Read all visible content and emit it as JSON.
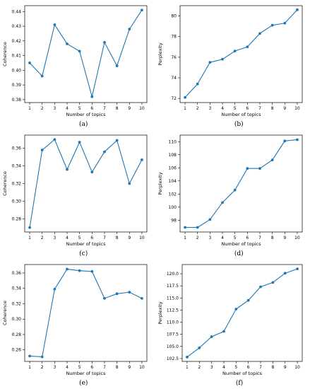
{
  "chart_data": [
    {
      "type": "line",
      "caption": "(a)",
      "xlabel": "Number of topics",
      "ylabel": "Coherence",
      "x": [
        1,
        2,
        3,
        4,
        5,
        6,
        7,
        8,
        9,
        10
      ],
      "y": [
        0.405,
        0.396,
        0.431,
        0.418,
        0.413,
        0.382,
        0.419,
        0.403,
        0.428,
        0.441
      ],
      "xlim": [
        0.6,
        10.4
      ],
      "ylim": [
        0.378,
        0.444
      ],
      "yticks": [
        0.38,
        0.39,
        0.4,
        0.41,
        0.42,
        0.43,
        0.44
      ],
      "yticklabels": [
        "0.38",
        "0.39",
        "0.40",
        "0.41",
        "0.42",
        "0.43",
        "0.44"
      ],
      "color": "#1f77b4",
      "grid": false
    },
    {
      "type": "line",
      "caption": "(b)",
      "xlabel": "Number of topics",
      "ylabel": "Perplexity",
      "x": [
        1,
        2,
        3,
        4,
        5,
        6,
        7,
        8,
        9,
        10
      ],
      "y": [
        72.1,
        73.4,
        75.5,
        75.8,
        76.6,
        77.0,
        78.3,
        79.1,
        79.3,
        80.6
      ],
      "xlim": [
        0.6,
        10.4
      ],
      "ylim": [
        71.6,
        81.0
      ],
      "yticks": [
        72,
        74,
        76,
        78,
        80
      ],
      "yticklabels": [
        "72",
        "74",
        "76",
        "78",
        "80"
      ],
      "color": "#1f77b4",
      "grid": false
    },
    {
      "type": "line",
      "caption": "(c)",
      "xlabel": "Number of topics",
      "ylabel": "Coherence",
      "x": [
        1,
        2,
        3,
        4,
        5,
        6,
        7,
        8,
        9,
        10
      ],
      "y": [
        0.27,
        0.358,
        0.37,
        0.336,
        0.367,
        0.333,
        0.356,
        0.369,
        0.32,
        0.347
      ],
      "xlim": [
        0.6,
        10.4
      ],
      "ylim": [
        0.265,
        0.375
      ],
      "yticks": [
        0.28,
        0.3,
        0.32,
        0.34,
        0.36
      ],
      "yticklabels": [
        "0.28",
        "0.30",
        "0.32",
        "0.34",
        "0.36"
      ],
      "color": "#1f77b4",
      "grid": false
    },
    {
      "type": "line",
      "caption": "(d)",
      "xlabel": "Number of topics",
      "ylabel": "Perplexity",
      "x": [
        1,
        2,
        3,
        4,
        5,
        6,
        7,
        8,
        9,
        10
      ],
      "y": [
        96.9,
        96.9,
        98.1,
        100.7,
        102.6,
        105.9,
        105.9,
        107.2,
        110.1,
        110.3
      ],
      "xlim": [
        0.6,
        10.4
      ],
      "ylim": [
        96.2,
        111.0
      ],
      "yticks": [
        98,
        100,
        102,
        104,
        106,
        108,
        110
      ],
      "yticklabels": [
        "98",
        "100",
        "102",
        "104",
        "106",
        "108",
        "110"
      ],
      "color": "#1f77b4",
      "grid": false
    },
    {
      "type": "line",
      "caption": "(e)",
      "xlabel": "Number of topics",
      "ylabel": "Coherence",
      "x": [
        1,
        2,
        3,
        4,
        5,
        6,
        7,
        8,
        9,
        10
      ],
      "y": [
        0.252,
        0.251,
        0.339,
        0.365,
        0.363,
        0.362,
        0.327,
        0.333,
        0.335,
        0.327
      ],
      "xlim": [
        0.6,
        10.4
      ],
      "ylim": [
        0.245,
        0.371
      ],
      "yticks": [
        0.26,
        0.28,
        0.3,
        0.32,
        0.34,
        0.36
      ],
      "yticklabels": [
        "0.26",
        "0.28",
        "0.30",
        "0.32",
        "0.34",
        "0.36"
      ],
      "color": "#1f77b4",
      "grid": false
    },
    {
      "type": "line",
      "caption": "(f)",
      "xlabel": "Number of topics",
      "ylabel": "Perplexity",
      "x": [
        1,
        2,
        3,
        4,
        5,
        6,
        7,
        8,
        9,
        10
      ],
      "y": [
        102.8,
        104.7,
        107.0,
        108.1,
        112.7,
        114.5,
        117.3,
        118.2,
        120.1,
        121.0
      ],
      "xlim": [
        0.6,
        10.4
      ],
      "ylim": [
        101.9,
        121.9
      ],
      "yticks": [
        102.5,
        105.0,
        107.5,
        110.0,
        112.5,
        115.0,
        117.5,
        120.0
      ],
      "yticklabels": [
        "102.5",
        "105.0",
        "107.5",
        "110.0",
        "112.5",
        "115.0",
        "117.5",
        "120.0"
      ],
      "color": "#1f77b4",
      "grid": false
    }
  ]
}
